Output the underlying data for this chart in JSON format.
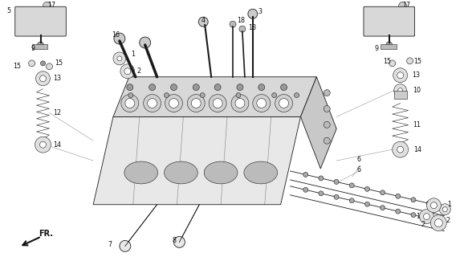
{
  "bg_color": "#ffffff",
  "fg_color": "#1a1a1a",
  "figsize": [
    5.78,
    3.2
  ],
  "dpi": 100,
  "lc": "#1a1a1a",
  "label_fs": 5.5,
  "label_color": "#111111"
}
